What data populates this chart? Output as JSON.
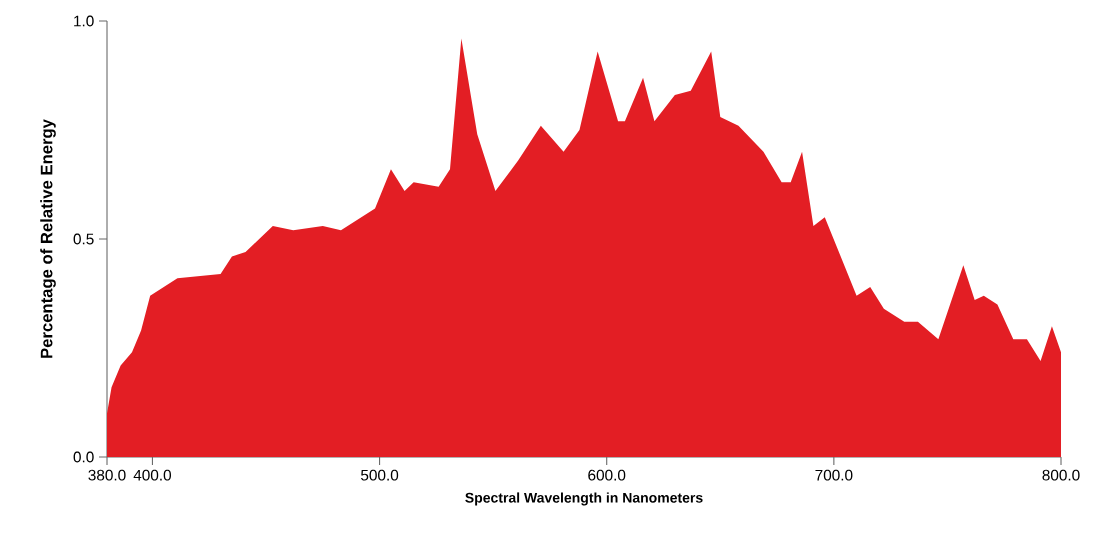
{
  "chart_data": {
    "type": "area",
    "xlabel": "Spectral Wavelength in Nanometers",
    "ylabel": "Percentage of Relative Energy",
    "xlim": [
      380,
      800
    ],
    "ylim": [
      0,
      1.0
    ],
    "xticks": [
      {
        "value": 380,
        "label": "380.0"
      },
      {
        "value": 400,
        "label": "400.0"
      },
      {
        "value": 500,
        "label": "500.0"
      },
      {
        "value": 600,
        "label": "600.0"
      },
      {
        "value": 700,
        "label": "700.0"
      },
      {
        "value": 800,
        "label": "800.0"
      }
    ],
    "grid": false,
    "yticks": [
      {
        "value": 0,
        "label": "0.0"
      },
      {
        "value": 0.5,
        "label": "0.5"
      },
      {
        "value": 1.0,
        "label": "1.0"
      }
    ],
    "series": [
      {
        "x": [
          380,
          382,
          386,
          391,
          395,
          399,
          411,
          430,
          435,
          441,
          453,
          462,
          475,
          483,
          498,
          505,
          511,
          515,
          526,
          531,
          536,
          543,
          551,
          561,
          571,
          581,
          588,
          596,
          605,
          608,
          616,
          621,
          630,
          637,
          646,
          650,
          658,
          669,
          677,
          681,
          686,
          691,
          696,
          710,
          716,
          722,
          731,
          737,
          746,
          757,
          762,
          766,
          772,
          779,
          785,
          791,
          796,
          800
        ],
        "values": [
          0.1,
          0.16,
          0.21,
          0.24,
          0.29,
          0.37,
          0.41,
          0.42,
          0.46,
          0.47,
          0.53,
          0.52,
          0.53,
          0.52,
          0.57,
          0.66,
          0.61,
          0.63,
          0.62,
          0.66,
          0.96,
          0.74,
          0.61,
          0.68,
          0.76,
          0.7,
          0.75,
          0.93,
          0.77,
          0.77,
          0.87,
          0.77,
          0.83,
          0.84,
          0.93,
          0.78,
          0.76,
          0.7,
          0.63,
          0.63,
          0.7,
          0.53,
          0.55,
          0.37,
          0.39,
          0.34,
          0.31,
          0.31,
          0.27,
          0.44,
          0.36,
          0.37,
          0.35,
          0.27,
          0.27,
          0.22,
          0.3,
          0.24
        ],
        "color": "#e31e24"
      }
    ]
  }
}
